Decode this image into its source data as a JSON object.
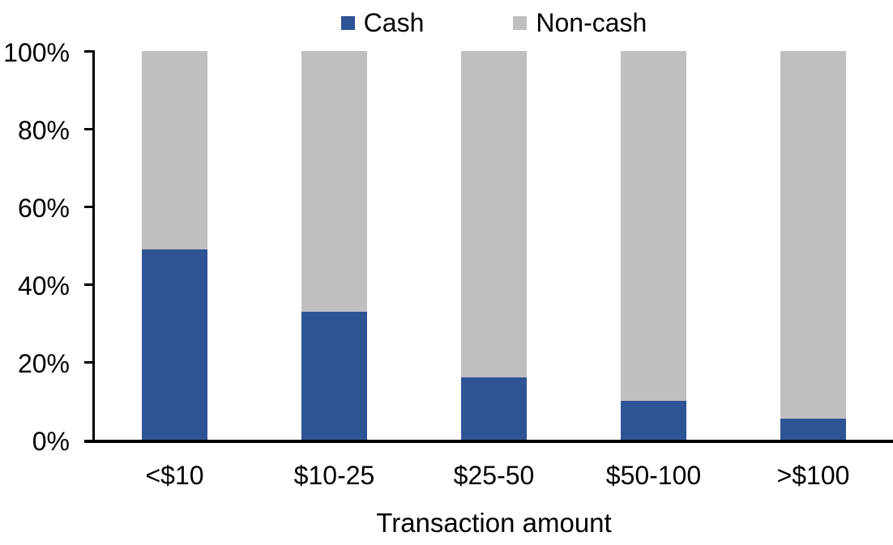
{
  "chart_data": {
    "type": "bar",
    "stacked": true,
    "orientation": "vertical",
    "title": "",
    "xlabel": "Transaction amount",
    "ylabel": "",
    "categories": [
      "<$10",
      "$10-25",
      "$25-50",
      "$50-100",
      ">$100"
    ],
    "series": [
      {
        "name": "Cash",
        "color": "#2F5496",
        "values": [
          49,
          33,
          16,
          10,
          5.5
        ]
      },
      {
        "name": "Non-cash",
        "color": "#BFBFBF",
        "values": [
          51,
          67,
          84,
          90,
          94.5
        ]
      }
    ],
    "ylim": [
      0,
      100
    ],
    "ytick_values": [
      0,
      20,
      40,
      60,
      80,
      100
    ],
    "ytick_labels": [
      "0%",
      "20%",
      "40%",
      "60%",
      "80%",
      "100%"
    ],
    "grid": false,
    "legend_position": "top-center",
    "axis_color": "#000000",
    "background_color": "#FFFFFF"
  }
}
